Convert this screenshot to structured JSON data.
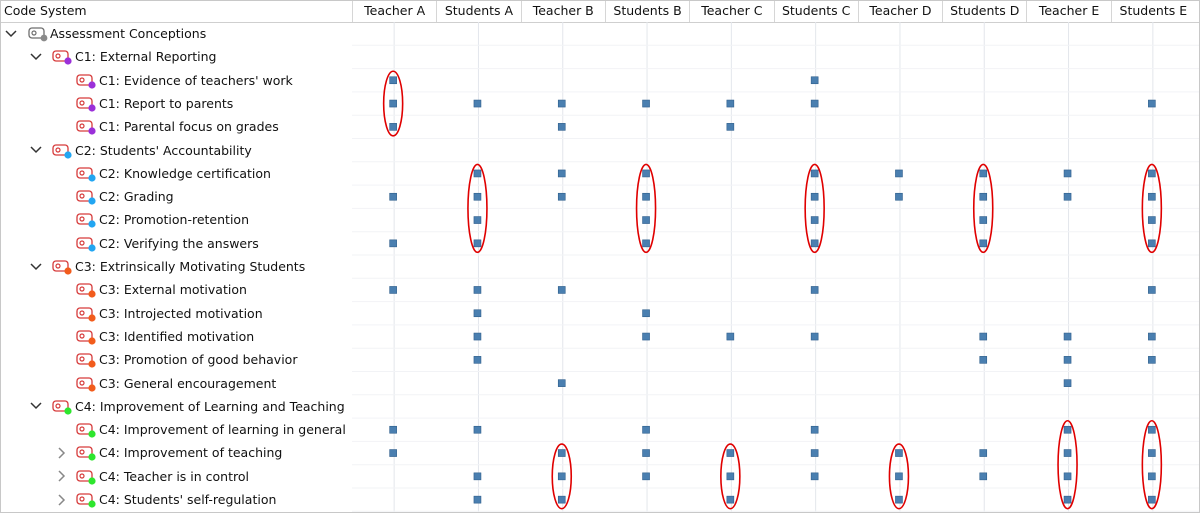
{
  "header": {
    "code_system_label": "Code System",
    "columns": [
      "Teacher A",
      "Students A",
      "Teacher B",
      "Students B",
      "Teacher C",
      "Students C",
      "Teacher D",
      "Students D",
      "Teacher E",
      "Students E"
    ]
  },
  "tree": [
    {
      "label": "Assessment Conceptions",
      "level": 0,
      "chevron": "expanded",
      "dot": "#8a8a8a",
      "kind": "root",
      "marks": []
    },
    {
      "label": "C1: External Reporting",
      "level": 1,
      "chevron": "expanded",
      "dot": "#9b30d9",
      "kind": "code",
      "marks": []
    },
    {
      "label": "C1: Evidence of teachers' work",
      "level": 2,
      "chevron": "none",
      "dot": "#9b30d9",
      "kind": "code",
      "marks": [
        1,
        0,
        0,
        0,
        0,
        1,
        0,
        0,
        0,
        0
      ]
    },
    {
      "label": "C1: Report to parents",
      "level": 2,
      "chevron": "none",
      "dot": "#9b30d9",
      "kind": "code",
      "marks": [
        1,
        1,
        1,
        1,
        1,
        1,
        0,
        0,
        0,
        1
      ]
    },
    {
      "label": "C1: Parental focus on grades",
      "level": 2,
      "chevron": "none",
      "dot": "#9b30d9",
      "kind": "code",
      "marks": [
        1,
        0,
        1,
        0,
        1,
        0,
        0,
        0,
        0,
        0
      ]
    },
    {
      "label": "C2: Students' Accountability",
      "level": 1,
      "chevron": "expanded",
      "dot": "#22a6f2",
      "kind": "code",
      "marks": []
    },
    {
      "label": "C2: Knowledge certification",
      "level": 2,
      "chevron": "none",
      "dot": "#22a6f2",
      "kind": "code",
      "marks": [
        0,
        1,
        1,
        1,
        0,
        1,
        1,
        1,
        1,
        1
      ]
    },
    {
      "label": "C2: Grading",
      "level": 2,
      "chevron": "none",
      "dot": "#22a6f2",
      "kind": "code",
      "marks": [
        1,
        1,
        1,
        1,
        0,
        1,
        1,
        1,
        1,
        1
      ]
    },
    {
      "label": "C2: Promotion-retention",
      "level": 2,
      "chevron": "none",
      "dot": "#22a6f2",
      "kind": "code",
      "marks": [
        0,
        1,
        0,
        1,
        0,
        1,
        0,
        1,
        0,
        1
      ]
    },
    {
      "label": "C2: Verifying the answers",
      "level": 2,
      "chevron": "none",
      "dot": "#22a6f2",
      "kind": "code",
      "marks": [
        1,
        1,
        0,
        1,
        0,
        1,
        0,
        1,
        0,
        1
      ]
    },
    {
      "label": "C3: Extrinsically Motivating Students",
      "level": 1,
      "chevron": "expanded",
      "dot": "#f25c1c",
      "kind": "code",
      "marks": []
    },
    {
      "label": "C3: External motivation",
      "level": 2,
      "chevron": "none",
      "dot": "#f25c1c",
      "kind": "code",
      "marks": [
        1,
        1,
        1,
        0,
        0,
        1,
        0,
        0,
        0,
        1
      ]
    },
    {
      "label": "C3: Introjected motivation",
      "level": 2,
      "chevron": "none",
      "dot": "#f25c1c",
      "kind": "code",
      "marks": [
        0,
        1,
        0,
        1,
        0,
        0,
        0,
        0,
        0,
        0
      ]
    },
    {
      "label": "C3: Identified motivation",
      "level": 2,
      "chevron": "none",
      "dot": "#f25c1c",
      "kind": "code",
      "marks": [
        0,
        1,
        0,
        1,
        1,
        1,
        0,
        1,
        1,
        1
      ]
    },
    {
      "label": "C3: Promotion of good behavior",
      "level": 2,
      "chevron": "none",
      "dot": "#f25c1c",
      "kind": "code",
      "marks": [
        0,
        1,
        0,
        0,
        0,
        0,
        0,
        1,
        1,
        1
      ]
    },
    {
      "label": "C3: General encouragement",
      "level": 2,
      "chevron": "none",
      "dot": "#f25c1c",
      "kind": "code",
      "marks": [
        0,
        0,
        1,
        0,
        0,
        0,
        0,
        0,
        1,
        0
      ]
    },
    {
      "label": "C4: Improvement of Learning and Teaching",
      "level": 1,
      "chevron": "expanded",
      "dot": "#2ee62e",
      "kind": "code",
      "marks": []
    },
    {
      "label": "C4: Improvement of learning in general",
      "level": 2,
      "chevron": "none",
      "dot": "#2ee62e",
      "kind": "code",
      "marks": [
        1,
        1,
        0,
        1,
        0,
        1,
        0,
        0,
        1,
        1
      ]
    },
    {
      "label": "C4: Improvement of teaching",
      "level": 2,
      "chevron": "collapsed",
      "dot": "#2ee62e",
      "kind": "code",
      "marks": [
        1,
        0,
        1,
        1,
        1,
        1,
        1,
        1,
        1,
        1
      ]
    },
    {
      "label": "C4: Teacher is in control",
      "level": 2,
      "chevron": "collapsed",
      "dot": "#2ee62e",
      "kind": "code",
      "marks": [
        0,
        1,
        1,
        1,
        1,
        1,
        1,
        1,
        1,
        1
      ]
    },
    {
      "label": "C4: Students' self-regulation",
      "level": 2,
      "chevron": "collapsed",
      "dot": "#2ee62e",
      "kind": "code",
      "marks": [
        0,
        1,
        1,
        0,
        1,
        0,
        1,
        0,
        1,
        1
      ]
    }
  ],
  "highlights": [
    {
      "column": 0,
      "from_row": 2,
      "to_row": 4
    },
    {
      "column": 1,
      "from_row": 6,
      "to_row": 9
    },
    {
      "column": 3,
      "from_row": 6,
      "to_row": 9
    },
    {
      "column": 5,
      "from_row": 6,
      "to_row": 9
    },
    {
      "column": 7,
      "from_row": 6,
      "to_row": 9
    },
    {
      "column": 9,
      "from_row": 6,
      "to_row": 9
    },
    {
      "column": 2,
      "from_row": 18,
      "to_row": 20
    },
    {
      "column": 4,
      "from_row": 18,
      "to_row": 20
    },
    {
      "column": 6,
      "from_row": 18,
      "to_row": 20
    },
    {
      "column": 8,
      "from_row": 17,
      "to_row": 20
    },
    {
      "column": 9,
      "from_row": 17,
      "to_row": 20
    }
  ],
  "colors": {
    "marker": "#4a7fb0",
    "marker_border": "#2f5f8c",
    "highlight": "#e00000",
    "grid_line": "#e3e6ec",
    "code_tag": "#d63a3a"
  },
  "icons": {
    "chevron_expanded": "chevron-down-icon",
    "chevron_collapsed": "chevron-right-icon",
    "code": "code-tag-icon",
    "root": "code-system-icon"
  }
}
